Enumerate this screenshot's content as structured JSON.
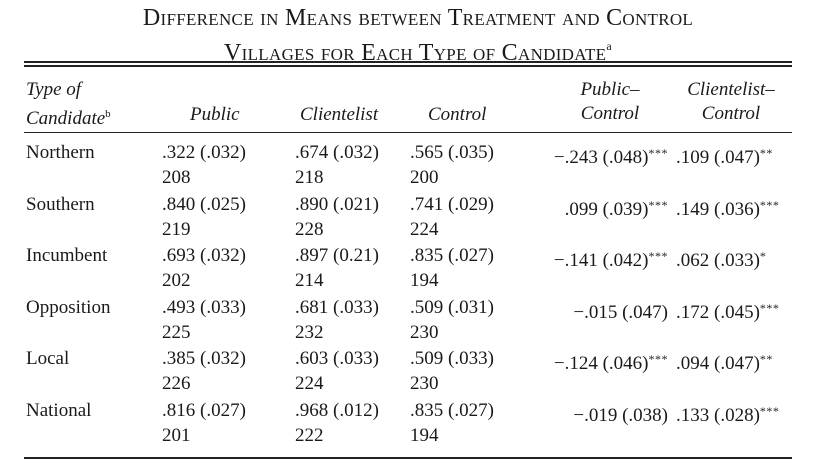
{
  "title": {
    "line1": "Difference in Means between Treatment and Control",
    "line2": "Villages for Each Type of Candidate",
    "footnote_mark": "a"
  },
  "columns": {
    "type_line1": "Type of",
    "type_line2": "Candidate",
    "type_footnote": "b",
    "public": "Public",
    "clientelist": "Clientelist",
    "control": "Control",
    "public_control_line1": "Public–",
    "public_control_line2": "Control",
    "clientelist_control_line1": "Clientelist–",
    "clientelist_control_line2": "Control"
  },
  "rows": [
    {
      "label": "Northern",
      "public": ".322 (.032)",
      "public_n": "208",
      "clientelist": ".674 (.032)",
      "clientelist_n": "218",
      "control": ".565 (.035)",
      "control_n": "200",
      "pc": "−.243 (.048)",
      "pc_sig": "***",
      "cc": ".109 (.047)",
      "cc_sig": "**"
    },
    {
      "label": "Southern",
      "public": ".840 (.025)",
      "public_n": "219",
      "clientelist": ".890 (.021)",
      "clientelist_n": "228",
      "control": ".741 (.029)",
      "control_n": "224",
      "pc": ".099 (.039)",
      "pc_sig": "***",
      "cc": ".149 (.036)",
      "cc_sig": "***"
    },
    {
      "label": "Incumbent",
      "public": ".693 (.032)",
      "public_n": "202",
      "clientelist": ".897 (0.21)",
      "clientelist_n": "214",
      "control": ".835 (.027)",
      "control_n": "194",
      "pc": "−.141 (.042)",
      "pc_sig": "***",
      "cc": ".062 (.033)",
      "cc_sig": "*"
    },
    {
      "label": "Opposition",
      "public": ".493 (.033)",
      "public_n": "225",
      "clientelist": ".681 (.033)",
      "clientelist_n": "232",
      "control": ".509 (.031)",
      "control_n": "230",
      "pc": "−.015 (.047)",
      "pc_sig": "",
      "cc": ".172 (.045)",
      "cc_sig": "***"
    },
    {
      "label": "Local",
      "public": ".385 (.032)",
      "public_n": "226",
      "clientelist": ".603 (.033)",
      "clientelist_n": "224",
      "control": ".509 (.033)",
      "control_n": "230",
      "pc": "−.124 (.046)",
      "pc_sig": "***",
      "cc": ".094 (.047)",
      "cc_sig": "**"
    },
    {
      "label": "National",
      "public": ".816 (.027)",
      "public_n": "201",
      "clientelist": ".968 (.012)",
      "clientelist_n": "222",
      "control": ".835 (.027)",
      "control_n": "194",
      "pc": "−.019 (.038)",
      "pc_sig": "",
      "cc": ".133 (.028)",
      "cc_sig": "***"
    }
  ]
}
